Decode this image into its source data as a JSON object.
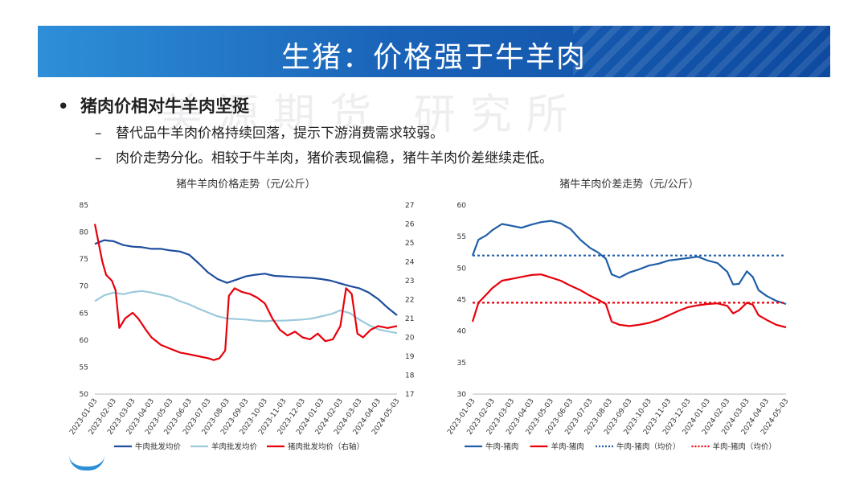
{
  "slide": {
    "title": "生猪：价格强于牛羊肉",
    "bullet": "猪肉价相对牛羊肉坚挺",
    "subpoints": [
      "替代品牛羊肉价格持续回落，提示下游消费需求较弱。",
      "肉价走势分化。相较于牛羊肉，猪价表现偏稳，猪牛羊肉价差继续走低。"
    ],
    "bullet_marker": "•",
    "dash_marker": "–",
    "watermark": "美源期货 研究所"
  },
  "chart_data": [
    {
      "type": "line",
      "title": "猪牛羊肉价格走势（元/公斤）",
      "x_ticks": [
        "2023-01-03",
        "2023-02-03",
        "2023-03-03",
        "2023-04-03",
        "2023-05-03",
        "2023-06-03",
        "2023-07-03",
        "2023-08-03",
        "2023-09-03",
        "2023-10-03",
        "2023-11-03",
        "2023-12-03",
        "2024-01-03",
        "2024-02-03",
        "2024-03-03",
        "2024-04-03",
        "2024-05-03"
      ],
      "ylim_left": [
        50,
        85
      ],
      "yticks_left": [
        50,
        55,
        60,
        65,
        70,
        75,
        80,
        85
      ],
      "ylim_right": [
        17,
        27
      ],
      "yticks_right": [
        17,
        18,
        19,
        20,
        21,
        22,
        23,
        24,
        25,
        26,
        27
      ],
      "grid": false,
      "legend_position": "bottom",
      "series": [
        {
          "name": "牛肉批发均价",
          "axis": "left",
          "color": "#1f4e9e",
          "points": [
            [
              0,
              77.8
            ],
            [
              0.5,
              78.5
            ],
            [
              1,
              78.3
            ],
            [
              1.5,
              77.6
            ],
            [
              2,
              77.3
            ],
            [
              2.5,
              77.2
            ],
            [
              3,
              76.9
            ],
            [
              3.5,
              76.9
            ],
            [
              4,
              76.6
            ],
            [
              4.5,
              76.4
            ],
            [
              5,
              75.8
            ],
            [
              5.5,
              74.2
            ],
            [
              6,
              72.5
            ],
            [
              6.5,
              71.3
            ],
            [
              7,
              70.6
            ],
            [
              7.5,
              71.2
            ],
            [
              8,
              71.8
            ],
            [
              8.5,
              72.1
            ],
            [
              9,
              72.3
            ],
            [
              9.5,
              71.9
            ],
            [
              10,
              71.8
            ],
            [
              10.5,
              71.7
            ],
            [
              11,
              71.6
            ],
            [
              11.5,
              71.5
            ],
            [
              12,
              71.3
            ],
            [
              12.5,
              71.0
            ],
            [
              13,
              70.5
            ],
            [
              13.5,
              70.0
            ],
            [
              14,
              69.6
            ],
            [
              14.5,
              68.8
            ],
            [
              15,
              67.6
            ],
            [
              15.5,
              66.0
            ],
            [
              16,
              64.6
            ]
          ]
        },
        {
          "name": "羊肉批发均价",
          "axis": "left",
          "color": "#9cc9dc",
          "points": [
            [
              0,
              67.2
            ],
            [
              0.5,
              68.3
            ],
            [
              1,
              68.8
            ],
            [
              1.5,
              68.5
            ],
            [
              2,
              68.9
            ],
            [
              2.5,
              69.1
            ],
            [
              3,
              68.8
            ],
            [
              3.5,
              68.4
            ],
            [
              4,
              68.0
            ],
            [
              4.5,
              67.2
            ],
            [
              5,
              66.6
            ],
            [
              5.5,
              65.8
            ],
            [
              6,
              65.1
            ],
            [
              6.5,
              64.4
            ],
            [
              7,
              64.0
            ],
            [
              7.5,
              63.9
            ],
            [
              8,
              63.8
            ],
            [
              8.5,
              63.6
            ],
            [
              9,
              63.5
            ],
            [
              9.5,
              63.6
            ],
            [
              10,
              63.6
            ],
            [
              10.5,
              63.7
            ],
            [
              11,
              63.8
            ],
            [
              11.5,
              64.0
            ],
            [
              12,
              64.4
            ],
            [
              12.5,
              64.8
            ],
            [
              13,
              65.5
            ],
            [
              13.5,
              65.0
            ],
            [
              14,
              63.8
            ],
            [
              14.5,
              62.8
            ],
            [
              15,
              62.0
            ],
            [
              15.5,
              61.6
            ],
            [
              16,
              61.3
            ]
          ]
        },
        {
          "name": "猪肉批发均价（右轴）",
          "axis": "right",
          "color": "#e8000b",
          "points": [
            [
              0,
              26.0
            ],
            [
              0.2,
              25.0
            ],
            [
              0.4,
              24.0
            ],
            [
              0.6,
              23.3
            ],
            [
              0.9,
              23.0
            ],
            [
              1.1,
              22.5
            ],
            [
              1.3,
              20.5
            ],
            [
              1.6,
              21.0
            ],
            [
              2,
              21.3
            ],
            [
              2.3,
              21.0
            ],
            [
              2.7,
              20.4
            ],
            [
              3,
              20.0
            ],
            [
              3.5,
              19.6
            ],
            [
              4,
              19.4
            ],
            [
              4.5,
              19.2
            ],
            [
              5,
              19.1
            ],
            [
              5.5,
              19.0
            ],
            [
              6,
              18.9
            ],
            [
              6.3,
              18.8
            ],
            [
              6.6,
              18.9
            ],
            [
              6.9,
              19.3
            ],
            [
              7.1,
              22.2
            ],
            [
              7.4,
              22.6
            ],
            [
              7.8,
              22.4
            ],
            [
              8.2,
              22.3
            ],
            [
              8.6,
              22.1
            ],
            [
              9,
              21.8
            ],
            [
              9.4,
              21.0
            ],
            [
              9.8,
              20.4
            ],
            [
              10.2,
              20.1
            ],
            [
              10.6,
              20.3
            ],
            [
              11,
              20.0
            ],
            [
              11.4,
              19.9
            ],
            [
              11.8,
              20.2
            ],
            [
              12.2,
              19.8
            ],
            [
              12.6,
              19.9
            ],
            [
              13,
              20.6
            ],
            [
              13.3,
              22.6
            ],
            [
              13.6,
              22.3
            ],
            [
              13.9,
              20.2
            ],
            [
              14.2,
              20.0
            ],
            [
              14.6,
              20.4
            ],
            [
              15,
              20.6
            ],
            [
              15.5,
              20.5
            ],
            [
              16,
              20.6
            ]
          ]
        }
      ]
    },
    {
      "type": "line",
      "title": "猪牛羊肉价差走势（元/公斤）",
      "x_ticks": [
        "2023-01-03",
        "2023-02-03",
        "2023-03-03",
        "2023-04-03",
        "2023-05-03",
        "2023-06-03",
        "2023-07-03",
        "2023-08-03",
        "2023-09-03",
        "2023-10-03",
        "2023-11-03",
        "2023-12-03",
        "2024-01-03",
        "2024-02-03",
        "2024-03-03",
        "2024-04-03",
        "2024-05-03"
      ],
      "ylim": [
        30,
        60
      ],
      "yticks": [
        30,
        35,
        40,
        45,
        50,
        55,
        60
      ],
      "grid": false,
      "legend_position": "bottom",
      "series": [
        {
          "name": "牛肉-猪肉",
          "color": "#1f5ea8",
          "style": "solid",
          "points": [
            [
              0,
              52.0
            ],
            [
              0.3,
              54.5
            ],
            [
              0.7,
              55.2
            ],
            [
              1,
              56.0
            ],
            [
              1.5,
              57.0
            ],
            [
              2,
              56.7
            ],
            [
              2.5,
              56.4
            ],
            [
              3,
              56.9
            ],
            [
              3.5,
              57.3
            ],
            [
              4,
              57.5
            ],
            [
              4.5,
              57.1
            ],
            [
              5,
              56.2
            ],
            [
              5.5,
              54.5
            ],
            [
              6,
              53.2
            ],
            [
              6.4,
              52.5
            ],
            [
              6.8,
              51.5
            ],
            [
              7.1,
              49.0
            ],
            [
              7.5,
              48.5
            ],
            [
              8,
              49.3
            ],
            [
              8.5,
              49.8
            ],
            [
              9,
              50.4
            ],
            [
              9.5,
              50.7
            ],
            [
              10,
              51.2
            ],
            [
              10.5,
              51.4
            ],
            [
              11,
              51.6
            ],
            [
              11.5,
              51.8
            ],
            [
              12,
              51.2
            ],
            [
              12.5,
              50.8
            ],
            [
              13,
              49.4
            ],
            [
              13.3,
              47.4
            ],
            [
              13.6,
              47.5
            ],
            [
              14,
              49.5
            ],
            [
              14.3,
              48.6
            ],
            [
              14.6,
              46.5
            ],
            [
              15,
              45.6
            ],
            [
              15.5,
              44.8
            ],
            [
              16,
              44.3
            ]
          ]
        },
        {
          "name": "羊肉-猪肉",
          "color": "#e8000b",
          "style": "solid",
          "points": [
            [
              0,
              41.5
            ],
            [
              0.3,
              44.5
            ],
            [
              0.7,
              45.8
            ],
            [
              1,
              46.8
            ],
            [
              1.5,
              48.0
            ],
            [
              2,
              48.3
            ],
            [
              2.5,
              48.6
            ],
            [
              3,
              48.9
            ],
            [
              3.5,
              49.0
            ],
            [
              4,
              48.5
            ],
            [
              4.5,
              48.0
            ],
            [
              5,
              47.2
            ],
            [
              5.5,
              46.5
            ],
            [
              6,
              45.6
            ],
            [
              6.4,
              45.0
            ],
            [
              6.8,
              44.3
            ],
            [
              7.1,
              41.5
            ],
            [
              7.5,
              41.0
            ],
            [
              8,
              40.8
            ],
            [
              8.5,
              41.0
            ],
            [
              9,
              41.3
            ],
            [
              9.5,
              41.8
            ],
            [
              10,
              42.5
            ],
            [
              10.5,
              43.2
            ],
            [
              11,
              43.8
            ],
            [
              11.5,
              44.1
            ],
            [
              12,
              44.3
            ],
            [
              12.5,
              44.4
            ],
            [
              13,
              44.0
            ],
            [
              13.3,
              42.8
            ],
            [
              13.6,
              43.3
            ],
            [
              14,
              44.5
            ],
            [
              14.3,
              44.2
            ],
            [
              14.6,
              42.5
            ],
            [
              15,
              41.8
            ],
            [
              15.5,
              41.0
            ],
            [
              16,
              40.6
            ]
          ]
        },
        {
          "name": "牛肉-猪肉（均价）",
          "color": "#1f5ea8",
          "style": "dashed",
          "constant": 52.0
        },
        {
          "name": "羊肉-猪肉（均价）",
          "color": "#e8000b",
          "style": "dashed",
          "constant": 44.5
        }
      ]
    }
  ]
}
